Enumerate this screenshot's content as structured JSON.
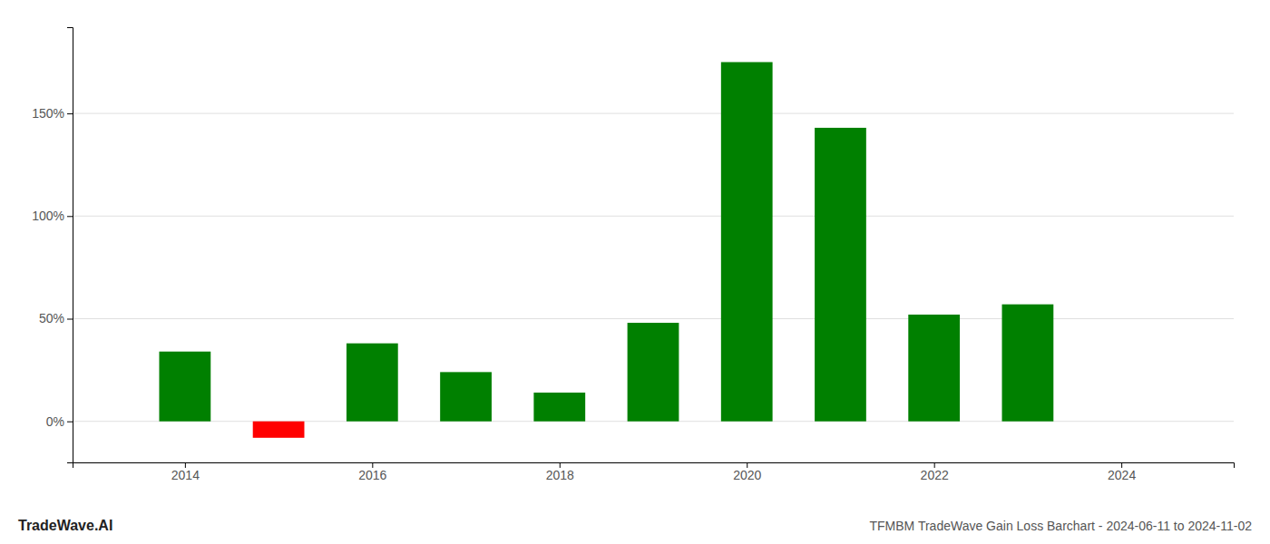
{
  "chart_data": {
    "type": "bar",
    "title": "TFMBM TradeWave Gain Loss Barchart - 2024-06-11 to 2024-11-02",
    "annotations": [
      "TradeWave.AI"
    ],
    "x": [
      2014,
      2015,
      2016,
      2017,
      2018,
      2019,
      2020,
      2021,
      2022,
      2023
    ],
    "values": [
      34,
      -8,
      38,
      24,
      14,
      48,
      175,
      143,
      52,
      57
    ],
    "colors": [
      "#008000",
      "#ff0000",
      "#008000",
      "#008000",
      "#008000",
      "#008000",
      "#008000",
      "#008000",
      "#008000",
      "#008000"
    ],
    "xlim": [
      2012.8,
      2025.2
    ],
    "xticks": [
      2014,
      2016,
      2018,
      2020,
      2022,
      2024
    ],
    "ylim": [
      -20,
      192
    ],
    "yticks": [
      {
        "value": 0,
        "label": "0%"
      },
      {
        "value": 50,
        "label": "50%"
      },
      {
        "value": 100,
        "label": "100%"
      },
      {
        "value": 150,
        "label": "150%"
      }
    ],
    "grid": true
  }
}
